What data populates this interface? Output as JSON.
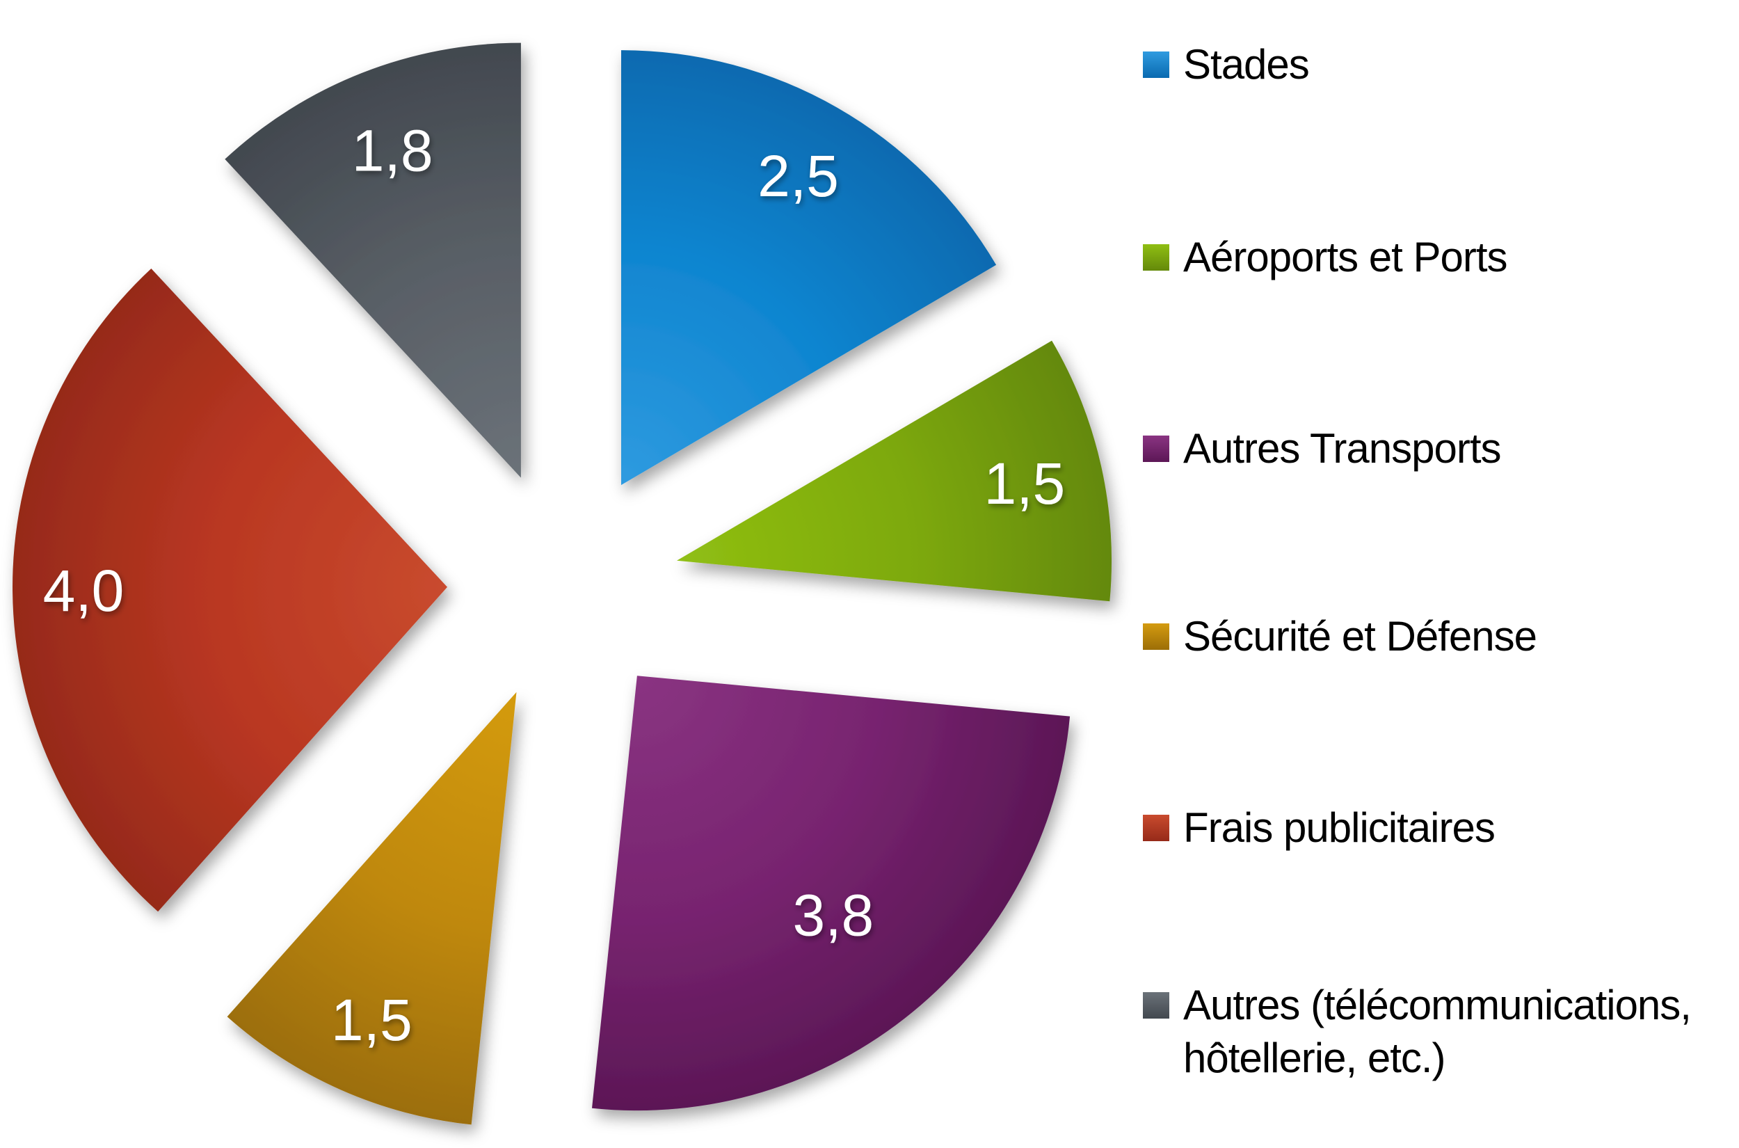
{
  "chart_data": {
    "type": "pie",
    "title": "",
    "exploded": true,
    "legend_position": "right",
    "decimal_separator": ",",
    "slices": [
      {
        "label": "Stades",
        "value": 2.5,
        "value_label": "2,5",
        "fill": "#0F85D0",
        "fill_light": "#2F9BE0",
        "fill_dark": "#0A6AB0"
      },
      {
        "label": "Aéroports et Ports",
        "value": 1.5,
        "value_label": "1,5",
        "fill": "#7DA90B",
        "fill_light": "#90BF13",
        "fill_dark": "#64890A"
      },
      {
        "label": "Autres Transports",
        "value": 3.8,
        "value_label": "3,8",
        "fill": "#782470",
        "fill_light": "#8A3482",
        "fill_dark": "#5C1756"
      },
      {
        "label": "Sécurité et Défense",
        "value": 1.5,
        "value_label": "1,5",
        "fill": "#BF8808",
        "fill_light": "#D49B10",
        "fill_dark": "#9C6E07"
      },
      {
        "label": "Frais publicitaires",
        "value": 4.0,
        "value_label": "4,0",
        "fill": "#B93722",
        "fill_light": "#C94B2E",
        "fill_dark": "#962A19"
      },
      {
        "label": "Autres (télécommunications, hôtellerie, etc.)",
        "value": 1.8,
        "value_label": "1,8",
        "fill": "#585E65",
        "fill_light": "#6B7279",
        "fill_dark": "#42484F"
      }
    ]
  }
}
